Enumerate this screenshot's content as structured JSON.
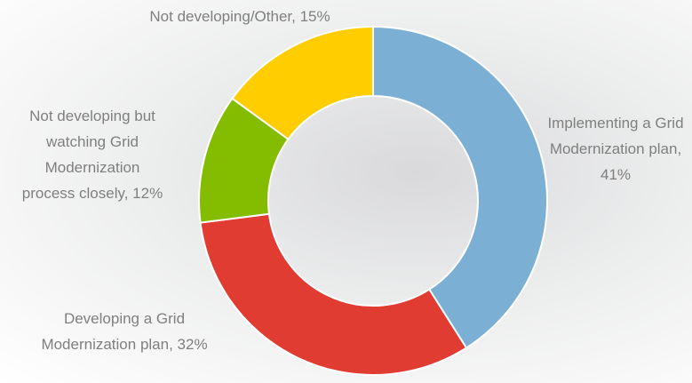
{
  "chart_data": {
    "type": "donut",
    "values": [
      41,
      32,
      12,
      15
    ],
    "value_labels": [
      "Implementing a Grid Modernization plan, 41%",
      "Developing a Grid Modernization plan, 32%",
      "Not developing but watching Grid Modernization process closely, 12%",
      "Not developing/Other, 15%"
    ],
    "colors": [
      "#7bafd4",
      "#e03c31",
      "#84bd00",
      "#ffcd00"
    ]
  }
}
